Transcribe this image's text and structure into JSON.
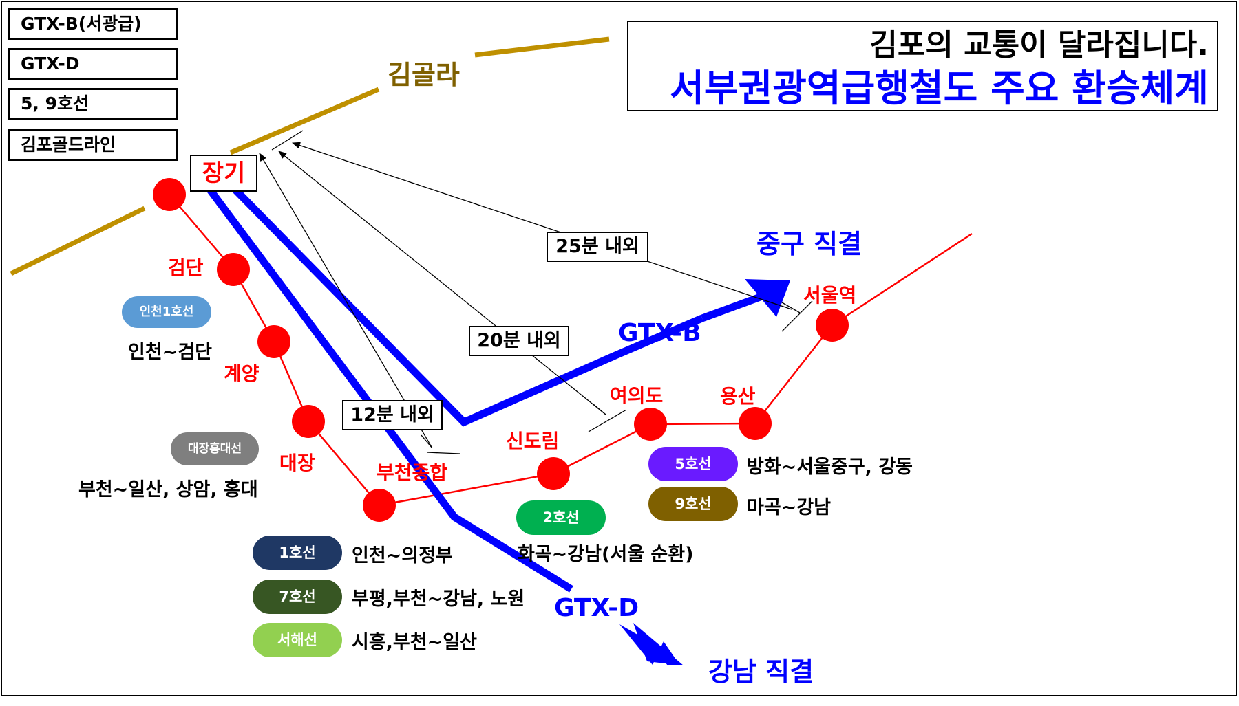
{
  "legend": [
    "GTX-B(서광급)",
    "GTX-D",
    "5, 9호선",
    "김포골드라인"
  ],
  "title": {
    "line1": "김포의 교통이 달라집니다.",
    "line2": "서부권광역급행철도 주요 환승체계"
  },
  "gimpo_gold_line_label": "김골라",
  "stations": {
    "janggi": "장기",
    "geomdan": "검단",
    "gyeyang": "계양",
    "daejang": "대장",
    "bucheon": "부천종합",
    "sindorim": "신도림",
    "yeouido": "여의도",
    "yongsan": "용산",
    "seoul": "서울역"
  },
  "times": [
    "25분 내외",
    "20분 내외",
    "12분 내외"
  ],
  "lines": {
    "gtx_b": "GTX-B",
    "gtx_d": "GTX-D",
    "junggu": "중구 직결",
    "gangnam": "강남 직결"
  },
  "transfers": [
    {
      "name": "인천1호선",
      "desc": "인천~검단",
      "color": "#5b9bd5"
    },
    {
      "name": "대장홍대선",
      "desc": "부천~일산, 상암, 홍대",
      "color": "#7f7f7f"
    },
    {
      "name": "1호선",
      "desc": "인천~의정부",
      "color": "#1f3864"
    },
    {
      "name": "7호선",
      "desc": "부평,부천~강남, 노원",
      "color": "#375623"
    },
    {
      "name": "서해선",
      "desc": "시흥,부천~일산",
      "color": "#92d050"
    },
    {
      "name": "2호선",
      "desc": "화곡~강남(서울 순환)",
      "color": "#00b050"
    },
    {
      "name": "5호선",
      "desc": "방화~서울중구, 강동",
      "color": "#6a1bff"
    },
    {
      "name": "9호선",
      "desc": "마곡~강남",
      "color": "#7f6000"
    }
  ],
  "colors": {
    "gold": "#bf9000",
    "station_red": "#ff0000",
    "gtx_blue": "#0000ff"
  }
}
